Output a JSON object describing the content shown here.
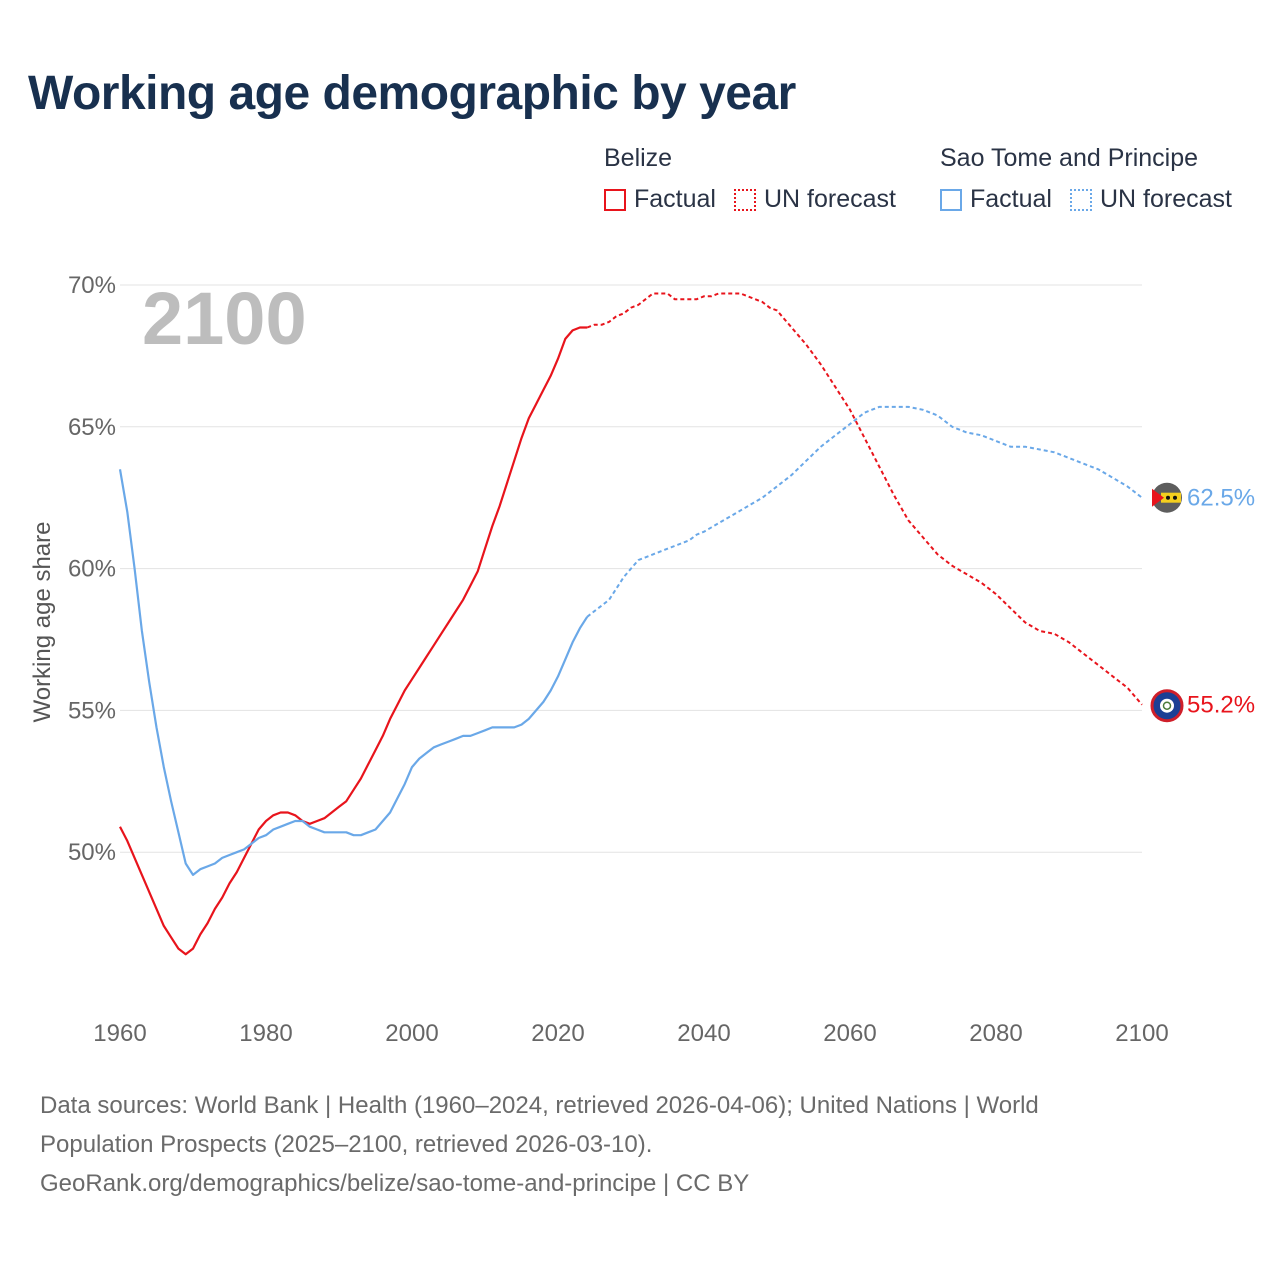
{
  "title": "Working age demographic by year",
  "legend": {
    "groups": [
      {
        "country": "Belize",
        "factual_label": "Factual",
        "forecast_label": "UN forecast",
        "color": "#e8141c"
      },
      {
        "country": "Sao Tome and Principe",
        "factual_label": "Factual",
        "forecast_label": "UN forecast",
        "color": "#6aa8e8"
      }
    ]
  },
  "chart_data": {
    "type": "line",
    "title": "Working age demographic by year",
    "ylabel": "Working age share",
    "xlabel": "",
    "year_label": "2100",
    "x_ticks": [
      "1960",
      "1980",
      "2000",
      "2020",
      "2040",
      "2060",
      "2080",
      "2100"
    ],
    "y_ticks": [
      "50%",
      "55%",
      "60%",
      "65%",
      "70%"
    ],
    "xlim": [
      1960,
      2100
    ],
    "ylim": [
      45,
      70
    ],
    "grid": true,
    "factual_end_year": 2024,
    "series": [
      {
        "name": "Belize",
        "color": "#e8141c",
        "end_label": "55.2%",
        "flag": "belize-flag",
        "points": [
          [
            1960,
            50.9
          ],
          [
            1961,
            50.4
          ],
          [
            1962,
            49.8
          ],
          [
            1963,
            49.2
          ],
          [
            1964,
            48.6
          ],
          [
            1965,
            48.0
          ],
          [
            1966,
            47.4
          ],
          [
            1967,
            47.0
          ],
          [
            1968,
            46.6
          ],
          [
            1969,
            46.4
          ],
          [
            1970,
            46.6
          ],
          [
            1971,
            47.1
          ],
          [
            1972,
            47.5
          ],
          [
            1973,
            48.0
          ],
          [
            1974,
            48.4
          ],
          [
            1975,
            48.9
          ],
          [
            1976,
            49.3
          ],
          [
            1977,
            49.8
          ],
          [
            1978,
            50.3
          ],
          [
            1979,
            50.8
          ],
          [
            1980,
            51.1
          ],
          [
            1981,
            51.3
          ],
          [
            1982,
            51.4
          ],
          [
            1983,
            51.4
          ],
          [
            1984,
            51.3
          ],
          [
            1985,
            51.1
          ],
          [
            1986,
            51.0
          ],
          [
            1987,
            51.1
          ],
          [
            1988,
            51.2
          ],
          [
            1989,
            51.4
          ],
          [
            1990,
            51.6
          ],
          [
            1991,
            51.8
          ],
          [
            1992,
            52.2
          ],
          [
            1993,
            52.6
          ],
          [
            1994,
            53.1
          ],
          [
            1995,
            53.6
          ],
          [
            1996,
            54.1
          ],
          [
            1997,
            54.7
          ],
          [
            1998,
            55.2
          ],
          [
            1999,
            55.7
          ],
          [
            2000,
            56.1
          ],
          [
            2001,
            56.5
          ],
          [
            2002,
            56.9
          ],
          [
            2003,
            57.3
          ],
          [
            2004,
            57.7
          ],
          [
            2005,
            58.1
          ],
          [
            2006,
            58.5
          ],
          [
            2007,
            58.9
          ],
          [
            2008,
            59.4
          ],
          [
            2009,
            59.9
          ],
          [
            2010,
            60.7
          ],
          [
            2011,
            61.5
          ],
          [
            2012,
            62.2
          ],
          [
            2013,
            63.0
          ],
          [
            2014,
            63.8
          ],
          [
            2015,
            64.6
          ],
          [
            2016,
            65.3
          ],
          [
            2017,
            65.8
          ],
          [
            2018,
            66.3
          ],
          [
            2019,
            66.8
          ],
          [
            2020,
            67.4
          ],
          [
            2021,
            68.1
          ],
          [
            2022,
            68.4
          ],
          [
            2023,
            68.5
          ],
          [
            2024,
            68.5
          ],
          [
            2025,
            68.6
          ],
          [
            2026,
            68.6
          ],
          [
            2027,
            68.7
          ],
          [
            2028,
            68.9
          ],
          [
            2029,
            69.0
          ],
          [
            2030,
            69.2
          ],
          [
            2031,
            69.3
          ],
          [
            2032,
            69.5
          ],
          [
            2033,
            69.7
          ],
          [
            2034,
            69.7
          ],
          [
            2035,
            69.7
          ],
          [
            2036,
            69.5
          ],
          [
            2037,
            69.5
          ],
          [
            2038,
            69.5
          ],
          [
            2039,
            69.5
          ],
          [
            2040,
            69.6
          ],
          [
            2041,
            69.6
          ],
          [
            2042,
            69.7
          ],
          [
            2043,
            69.7
          ],
          [
            2044,
            69.7
          ],
          [
            2045,
            69.7
          ],
          [
            2046,
            69.6
          ],
          [
            2047,
            69.5
          ],
          [
            2048,
            69.4
          ],
          [
            2049,
            69.2
          ],
          [
            2050,
            69.1
          ],
          [
            2052,
            68.5
          ],
          [
            2054,
            67.9
          ],
          [
            2056,
            67.2
          ],
          [
            2058,
            66.4
          ],
          [
            2060,
            65.6
          ],
          [
            2062,
            64.6
          ],
          [
            2064,
            63.6
          ],
          [
            2066,
            62.6
          ],
          [
            2068,
            61.7
          ],
          [
            2070,
            61.1
          ],
          [
            2072,
            60.5
          ],
          [
            2074,
            60.1
          ],
          [
            2076,
            59.8
          ],
          [
            2078,
            59.5
          ],
          [
            2080,
            59.1
          ],
          [
            2082,
            58.6
          ],
          [
            2084,
            58.1
          ],
          [
            2086,
            57.8
          ],
          [
            2088,
            57.7
          ],
          [
            2090,
            57.4
          ],
          [
            2092,
            57.0
          ],
          [
            2094,
            56.6
          ],
          [
            2096,
            56.2
          ],
          [
            2098,
            55.8
          ],
          [
            2100,
            55.2
          ]
        ]
      },
      {
        "name": "Sao Tome and Principe",
        "color": "#6aa8e8",
        "end_label": "62.5%",
        "flag": "sao-tome-flag",
        "points": [
          [
            1960,
            63.5
          ],
          [
            1961,
            62.0
          ],
          [
            1962,
            60.0
          ],
          [
            1963,
            57.8
          ],
          [
            1964,
            56.0
          ],
          [
            1965,
            54.4
          ],
          [
            1966,
            53.0
          ],
          [
            1967,
            51.8
          ],
          [
            1968,
            50.7
          ],
          [
            1969,
            49.6
          ],
          [
            1970,
            49.2
          ],
          [
            1971,
            49.4
          ],
          [
            1972,
            49.5
          ],
          [
            1973,
            49.6
          ],
          [
            1974,
            49.8
          ],
          [
            1975,
            49.9
          ],
          [
            1976,
            50.0
          ],
          [
            1977,
            50.1
          ],
          [
            1978,
            50.3
          ],
          [
            1979,
            50.5
          ],
          [
            1980,
            50.6
          ],
          [
            1981,
            50.8
          ],
          [
            1982,
            50.9
          ],
          [
            1983,
            51.0
          ],
          [
            1984,
            51.1
          ],
          [
            1985,
            51.1
          ],
          [
            1986,
            50.9
          ],
          [
            1987,
            50.8
          ],
          [
            1988,
            50.7
          ],
          [
            1989,
            50.7
          ],
          [
            1990,
            50.7
          ],
          [
            1991,
            50.7
          ],
          [
            1992,
            50.6
          ],
          [
            1993,
            50.6
          ],
          [
            1994,
            50.7
          ],
          [
            1995,
            50.8
          ],
          [
            1996,
            51.1
          ],
          [
            1997,
            51.4
          ],
          [
            1998,
            51.9
          ],
          [
            1999,
            52.4
          ],
          [
            2000,
            53.0
          ],
          [
            2001,
            53.3
          ],
          [
            2002,
            53.5
          ],
          [
            2003,
            53.7
          ],
          [
            2004,
            53.8
          ],
          [
            2005,
            53.9
          ],
          [
            2006,
            54.0
          ],
          [
            2007,
            54.1
          ],
          [
            2008,
            54.1
          ],
          [
            2009,
            54.2
          ],
          [
            2010,
            54.3
          ],
          [
            2011,
            54.4
          ],
          [
            2012,
            54.4
          ],
          [
            2013,
            54.4
          ],
          [
            2014,
            54.4
          ],
          [
            2015,
            54.5
          ],
          [
            2016,
            54.7
          ],
          [
            2017,
            55.0
          ],
          [
            2018,
            55.3
          ],
          [
            2019,
            55.7
          ],
          [
            2020,
            56.2
          ],
          [
            2021,
            56.8
          ],
          [
            2022,
            57.4
          ],
          [
            2023,
            57.9
          ],
          [
            2024,
            58.3
          ],
          [
            2025,
            58.5
          ],
          [
            2026,
            58.7
          ],
          [
            2027,
            58.9
          ],
          [
            2028,
            59.3
          ],
          [
            2029,
            59.7
          ],
          [
            2030,
            60.0
          ],
          [
            2031,
            60.3
          ],
          [
            2032,
            60.4
          ],
          [
            2033,
            60.5
          ],
          [
            2034,
            60.6
          ],
          [
            2035,
            60.7
          ],
          [
            2036,
            60.8
          ],
          [
            2037,
            60.9
          ],
          [
            2038,
            61.0
          ],
          [
            2039,
            61.2
          ],
          [
            2040,
            61.3
          ],
          [
            2042,
            61.6
          ],
          [
            2044,
            61.9
          ],
          [
            2046,
            62.2
          ],
          [
            2048,
            62.5
          ],
          [
            2050,
            62.9
          ],
          [
            2052,
            63.3
          ],
          [
            2054,
            63.8
          ],
          [
            2056,
            64.3
          ],
          [
            2058,
            64.7
          ],
          [
            2060,
            65.1
          ],
          [
            2062,
            65.5
          ],
          [
            2064,
            65.7
          ],
          [
            2066,
            65.7
          ],
          [
            2068,
            65.7
          ],
          [
            2070,
            65.6
          ],
          [
            2072,
            65.4
          ],
          [
            2074,
            65.0
          ],
          [
            2076,
            64.8
          ],
          [
            2078,
            64.7
          ],
          [
            2080,
            64.5
          ],
          [
            2082,
            64.3
          ],
          [
            2084,
            64.3
          ],
          [
            2086,
            64.2
          ],
          [
            2088,
            64.1
          ],
          [
            2090,
            63.9
          ],
          [
            2092,
            63.7
          ],
          [
            2094,
            63.5
          ],
          [
            2096,
            63.2
          ],
          [
            2098,
            62.9
          ],
          [
            2100,
            62.5
          ]
        ]
      }
    ]
  },
  "sources": {
    "line1": "Data sources: World Bank | Health (1960–2024, retrieved 2026-04-06); United Nations | World",
    "line2": "Population Prospects (2025–2100, retrieved 2026-03-10).",
    "line3": "GeoRank.org/demographics/belize/sao-tome-and-principe | CC BY"
  }
}
